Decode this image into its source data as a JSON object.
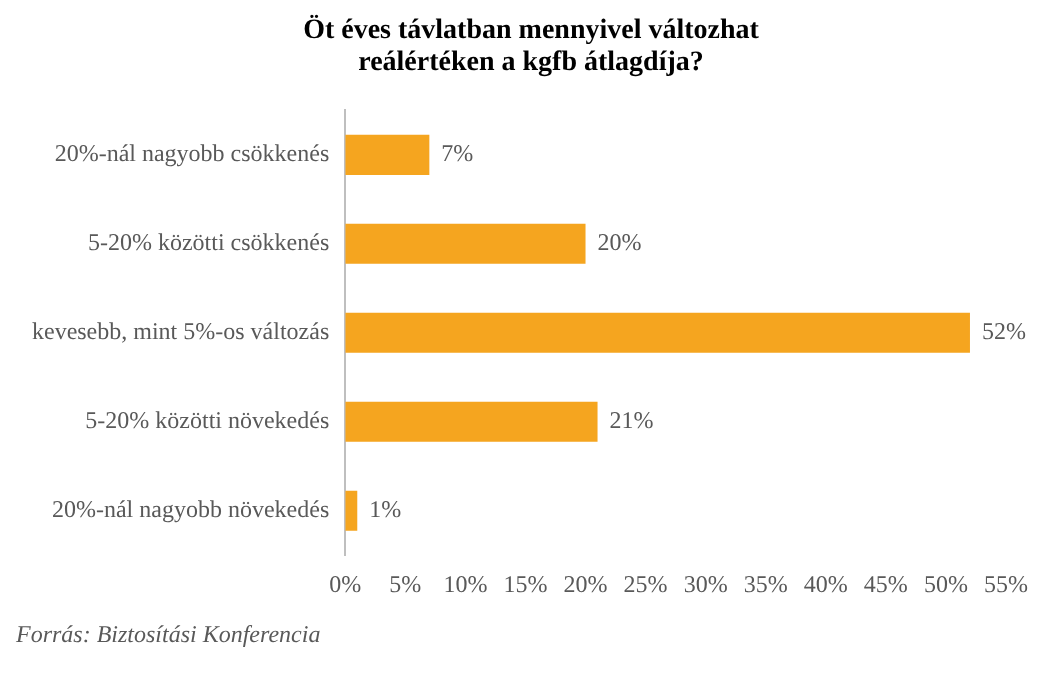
{
  "chart_data": {
    "type": "bar",
    "orientation": "horizontal",
    "title": "Öt éves távlatban mennyivel változhat reálértéken a kgfb átlagdíja?",
    "categories": [
      "20%-nál nagyobb csökkenés",
      "5-20% közötti csökkenés",
      "kevesebb, mint 5%-os változás",
      "5-20% közötti növekedés",
      "20%-nál nagyobb növekedés"
    ],
    "values": [
      7,
      20,
      52,
      21,
      1
    ],
    "value_labels": [
      "7%",
      "20%",
      "52%",
      "21%",
      "1%"
    ],
    "color": "#f5a51f",
    "xlim": [
      0,
      55
    ],
    "xticks": [
      {
        "value": 0,
        "label": "0%"
      },
      {
        "value": 5,
        "label": "5%"
      },
      {
        "value": 10,
        "label": "10%"
      },
      {
        "value": 15,
        "label": "15%"
      },
      {
        "value": 20,
        "label": "20%"
      },
      {
        "value": 25,
        "label": "25%"
      },
      {
        "value": 30,
        "label": "30%"
      },
      {
        "value": 35,
        "label": "35%"
      },
      {
        "value": 40,
        "label": "40%"
      },
      {
        "value": 45,
        "label": "45%"
      },
      {
        "value": 50,
        "label": "50%"
      },
      {
        "value": 55,
        "label": "55%"
      }
    ],
    "grid": false,
    "legend": false,
    "annotations": [
      "Forrás: Biztosítási Konferencia"
    ]
  }
}
